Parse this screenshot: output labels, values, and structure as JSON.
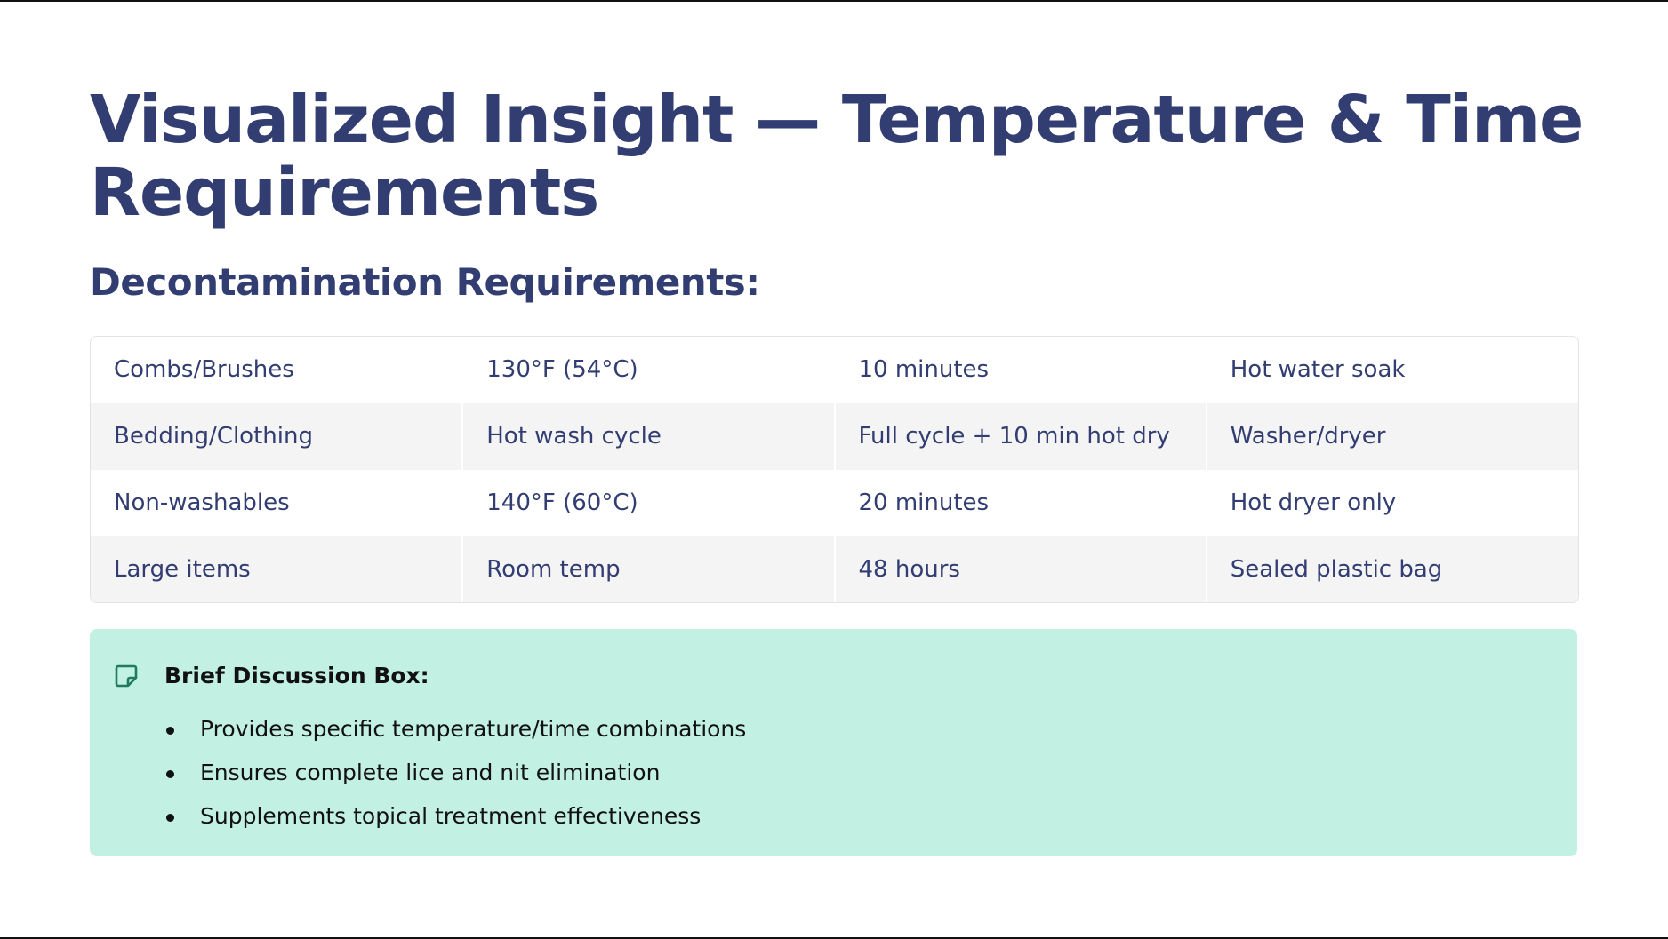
{
  "slide": {
    "title": "Visualized Insight — Temperature & Time Requirements",
    "subtitle": "Decontamination Requirements:"
  },
  "table": {
    "rows": [
      [
        "Combs/Brushes",
        "130°F (54°C)",
        "10 minutes",
        "Hot water soak"
      ],
      [
        "Bedding/Clothing",
        "Hot wash cycle",
        "Full cycle + 10 min hot dry",
        "Washer/dryer"
      ],
      [
        "Non-washables",
        "140°F (60°C)",
        "20 minutes",
        "Hot dryer only"
      ],
      [
        "Large items",
        "Room temp",
        "48 hours",
        "Sealed plastic bag"
      ]
    ]
  },
  "callout": {
    "icon": "sticky-note-icon",
    "title": "Brief Discussion Box:",
    "bullets": [
      "Provides specific temperature/time combinations",
      "Ensures complete lice and nit elimination",
      "Supplements topical treatment effectiveness"
    ]
  },
  "colors": {
    "heading": "#323d72",
    "table_text": "#323d72",
    "row_alt": "#f4f4f4",
    "callout_bg": "#c2f0e3",
    "icon": "#1f7a5e"
  }
}
